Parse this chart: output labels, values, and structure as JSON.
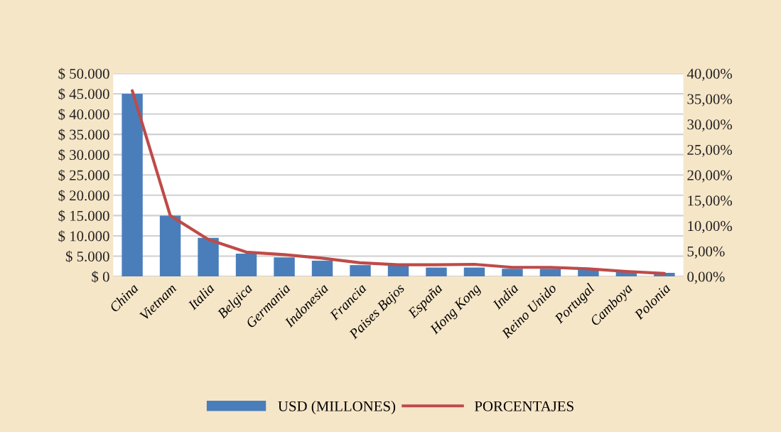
{
  "chart_data": {
    "type": "bar",
    "categories": [
      "China",
      "Vietnam",
      "Italia",
      "Belgica",
      "Germania",
      "Indonesia",
      "Francia",
      "Paises Bajos",
      "España",
      "Hong Kong",
      "India",
      "Reino Unido",
      "Portugal",
      "Camboya",
      "Polonia"
    ],
    "series": [
      {
        "name": "USD (MILLONES)",
        "color": "#4a7ebb",
        "values": [
          45000,
          15000,
          9500,
          5600,
          4700,
          3900,
          2800,
          2700,
          2200,
          2200,
          1900,
          1900,
          1700,
          1200,
          900
        ]
      },
      {
        "name": "PORCENTAJES",
        "type": "line",
        "axis": "y2",
        "color": "#be4b48",
        "values": [
          36.6,
          12.0,
          7.3,
          4.8,
          4.3,
          3.6,
          2.7,
          2.3,
          2.3,
          2.4,
          1.8,
          1.8,
          1.5,
          1.0,
          0.6
        ]
      }
    ],
    "ylim": [
      0,
      50000
    ],
    "yticks": [
      {
        "value": 0,
        "label": "$ 0"
      },
      {
        "value": 5000,
        "label": "$ 5.000"
      },
      {
        "value": 10000,
        "label": "$ 10.000"
      },
      {
        "value": 15000,
        "label": "$ 15.000"
      },
      {
        "value": 20000,
        "label": "$ 20.000"
      },
      {
        "value": 25000,
        "label": "$ 25.000"
      },
      {
        "value": 30000,
        "label": "$ 30.000"
      },
      {
        "value": 35000,
        "label": "$ 35.000"
      },
      {
        "value": 40000,
        "label": "$ 40.000"
      },
      {
        "value": 45000,
        "label": "$ 45.000"
      },
      {
        "value": 50000,
        "label": "$ 50.000"
      }
    ],
    "y2lim": [
      0,
      40
    ],
    "y2ticks": [
      {
        "value": 0,
        "label": "0,00%"
      },
      {
        "value": 5,
        "label": "5,00%"
      },
      {
        "value": 10,
        "label": "10,00%"
      },
      {
        "value": 15,
        "label": "15,00%"
      },
      {
        "value": 20,
        "label": "20,00%"
      },
      {
        "value": 25,
        "label": "25,00%"
      },
      {
        "value": 30,
        "label": "30,00%"
      },
      {
        "value": 35,
        "label": "35,00%"
      },
      {
        "value": 40,
        "label": "40,00%"
      }
    ],
    "grid": "y",
    "legend": "bottom"
  }
}
